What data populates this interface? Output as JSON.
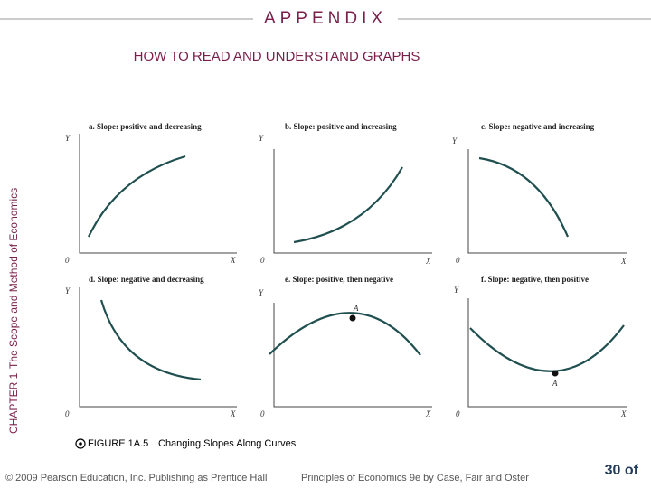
{
  "header": {
    "title": "APPENDIX",
    "subtitle": "HOW TO READ AND UNDERSTAND GRAPHS"
  },
  "sidebar": {
    "chapter": "CHAPTER 1",
    "chapter_title": "The Scope and Method of Economics"
  },
  "panels": [
    {
      "title": "a. Slope: positive and decreasing",
      "y_label": "Y",
      "x_label": "X",
      "origin": "0"
    },
    {
      "title": "b. Slope: positive and increasing",
      "y_label": "Y",
      "x_label": "X",
      "origin": "0"
    },
    {
      "title": "c. Slope: negative and increasing",
      "y_label": "Y",
      "x_label": "X",
      "origin": "0"
    },
    {
      "title": "d. Slope: negative and decreasing",
      "y_label": "Y",
      "x_label": "X",
      "origin": "0"
    },
    {
      "title": "e. Slope: positive, then negative",
      "y_label": "Y",
      "x_label": "X",
      "origin": "0",
      "point_label": "A"
    },
    {
      "title": "f. Slope: negative, then positive",
      "y_label": "Y",
      "x_label": "X",
      "origin": "0",
      "point_label": "A"
    }
  ],
  "caption": {
    "label": "FIGURE 1A.5",
    "text": "Changing Slopes Along Curves"
  },
  "footer": {
    "copyright": "© 2009 Pearson Education, Inc. Publishing as Prentice Hall",
    "book": "Principles of Economics 9e by Case, Fair and Oster",
    "page": "30 of"
  }
}
